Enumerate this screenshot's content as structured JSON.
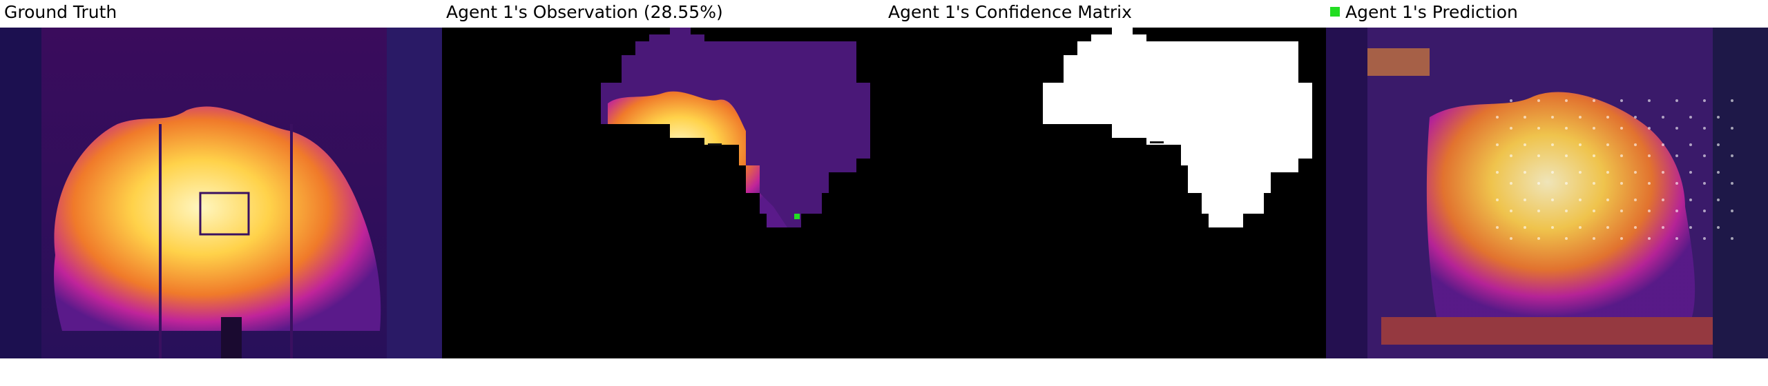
{
  "panels": [
    {
      "title": "Ground Truth"
    },
    {
      "title": "Agent 1's Observation (28.55%)"
    },
    {
      "title": "Agent 1's Confidence Matrix"
    },
    {
      "title": "Agent 1's Prediction",
      "marker_color": "#22dd22"
    }
  ],
  "colors": {
    "heat_low": "#2a0a4a",
    "heat_mid": "#c0249a",
    "heat_high": "#ffd24a",
    "heat_peak": "#fff6c0",
    "mask": "#000000",
    "confidence": "#ffffff",
    "agent_marker": "#22dd22"
  }
}
